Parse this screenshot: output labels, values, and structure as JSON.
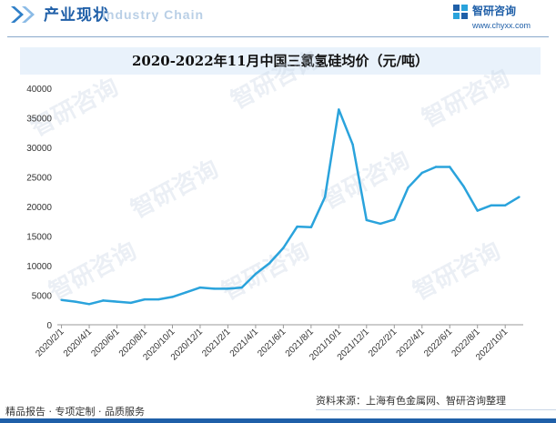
{
  "header": {
    "title": "产业现状",
    "ghost_text": "Industry Chain",
    "brand_name": "智研咨询",
    "brand_url": "www.chyxx.com"
  },
  "footer": {
    "left": "精品报告 · 专项定制 · 品质服务",
    "source": "资料来源：上海有色金属网、智研咨询整理"
  },
  "watermark_text": "智研咨询",
  "colors": {
    "line": "#2aa3dc",
    "brand": "#1f5fa8",
    "title_band": "#e9f2fb",
    "watermark": "#c7d4e3"
  },
  "chart_data": {
    "type": "line",
    "title": "2020-2022年11月中国三氯氢硅均价（元/吨）",
    "xlabel": "",
    "ylabel": "",
    "ylim": [
      0,
      40000
    ],
    "yticks": [
      0,
      5000,
      10000,
      15000,
      20000,
      25000,
      30000,
      35000,
      40000
    ],
    "grid": false,
    "legend": "none",
    "tick_labels": [
      "2020/2/1",
      "2020/4/1",
      "2020/6/1",
      "2020/8/1",
      "2020/10/1",
      "2020/12/1",
      "2021/2/1",
      "2021/4/1",
      "2021/6/1",
      "2021/8/1",
      "2021/10/1",
      "2021/12/1",
      "2022/2/1",
      "2022/4/1",
      "2022/6/1",
      "2022/8/1",
      "2022/10/1"
    ],
    "x": [
      "2020/2/1",
      "2020/3/1",
      "2020/4/1",
      "2020/5/1",
      "2020/6/1",
      "2020/7/1",
      "2020/8/1",
      "2020/9/1",
      "2020/10/1",
      "2020/11/1",
      "2020/12/1",
      "2021/1/1",
      "2021/2/1",
      "2021/3/1",
      "2021/4/1",
      "2021/5/1",
      "2021/6/1",
      "2021/7/1",
      "2021/8/1",
      "2021/9/1",
      "2021/10/1",
      "2021/11/1",
      "2021/12/1",
      "2022/1/1",
      "2022/2/1",
      "2022/3/1",
      "2022/4/1",
      "2022/5/1",
      "2022/6/1",
      "2022/7/1",
      "2022/8/1",
      "2022/9/1",
      "2022/10/1",
      "2022/11/1"
    ],
    "series": [
      {
        "values": [
          4200,
          3900,
          3500,
          4100,
          3900,
          3700,
          4300,
          4300,
          4700,
          5500,
          6300,
          6100,
          6100,
          6300,
          8600,
          10400,
          13000,
          16600,
          16500,
          21600,
          36400,
          30500,
          17700,
          17100,
          17800,
          23200,
          25700,
          26700,
          26700,
          23400,
          19300,
          20200,
          20200,
          21600
        ]
      }
    ]
  }
}
